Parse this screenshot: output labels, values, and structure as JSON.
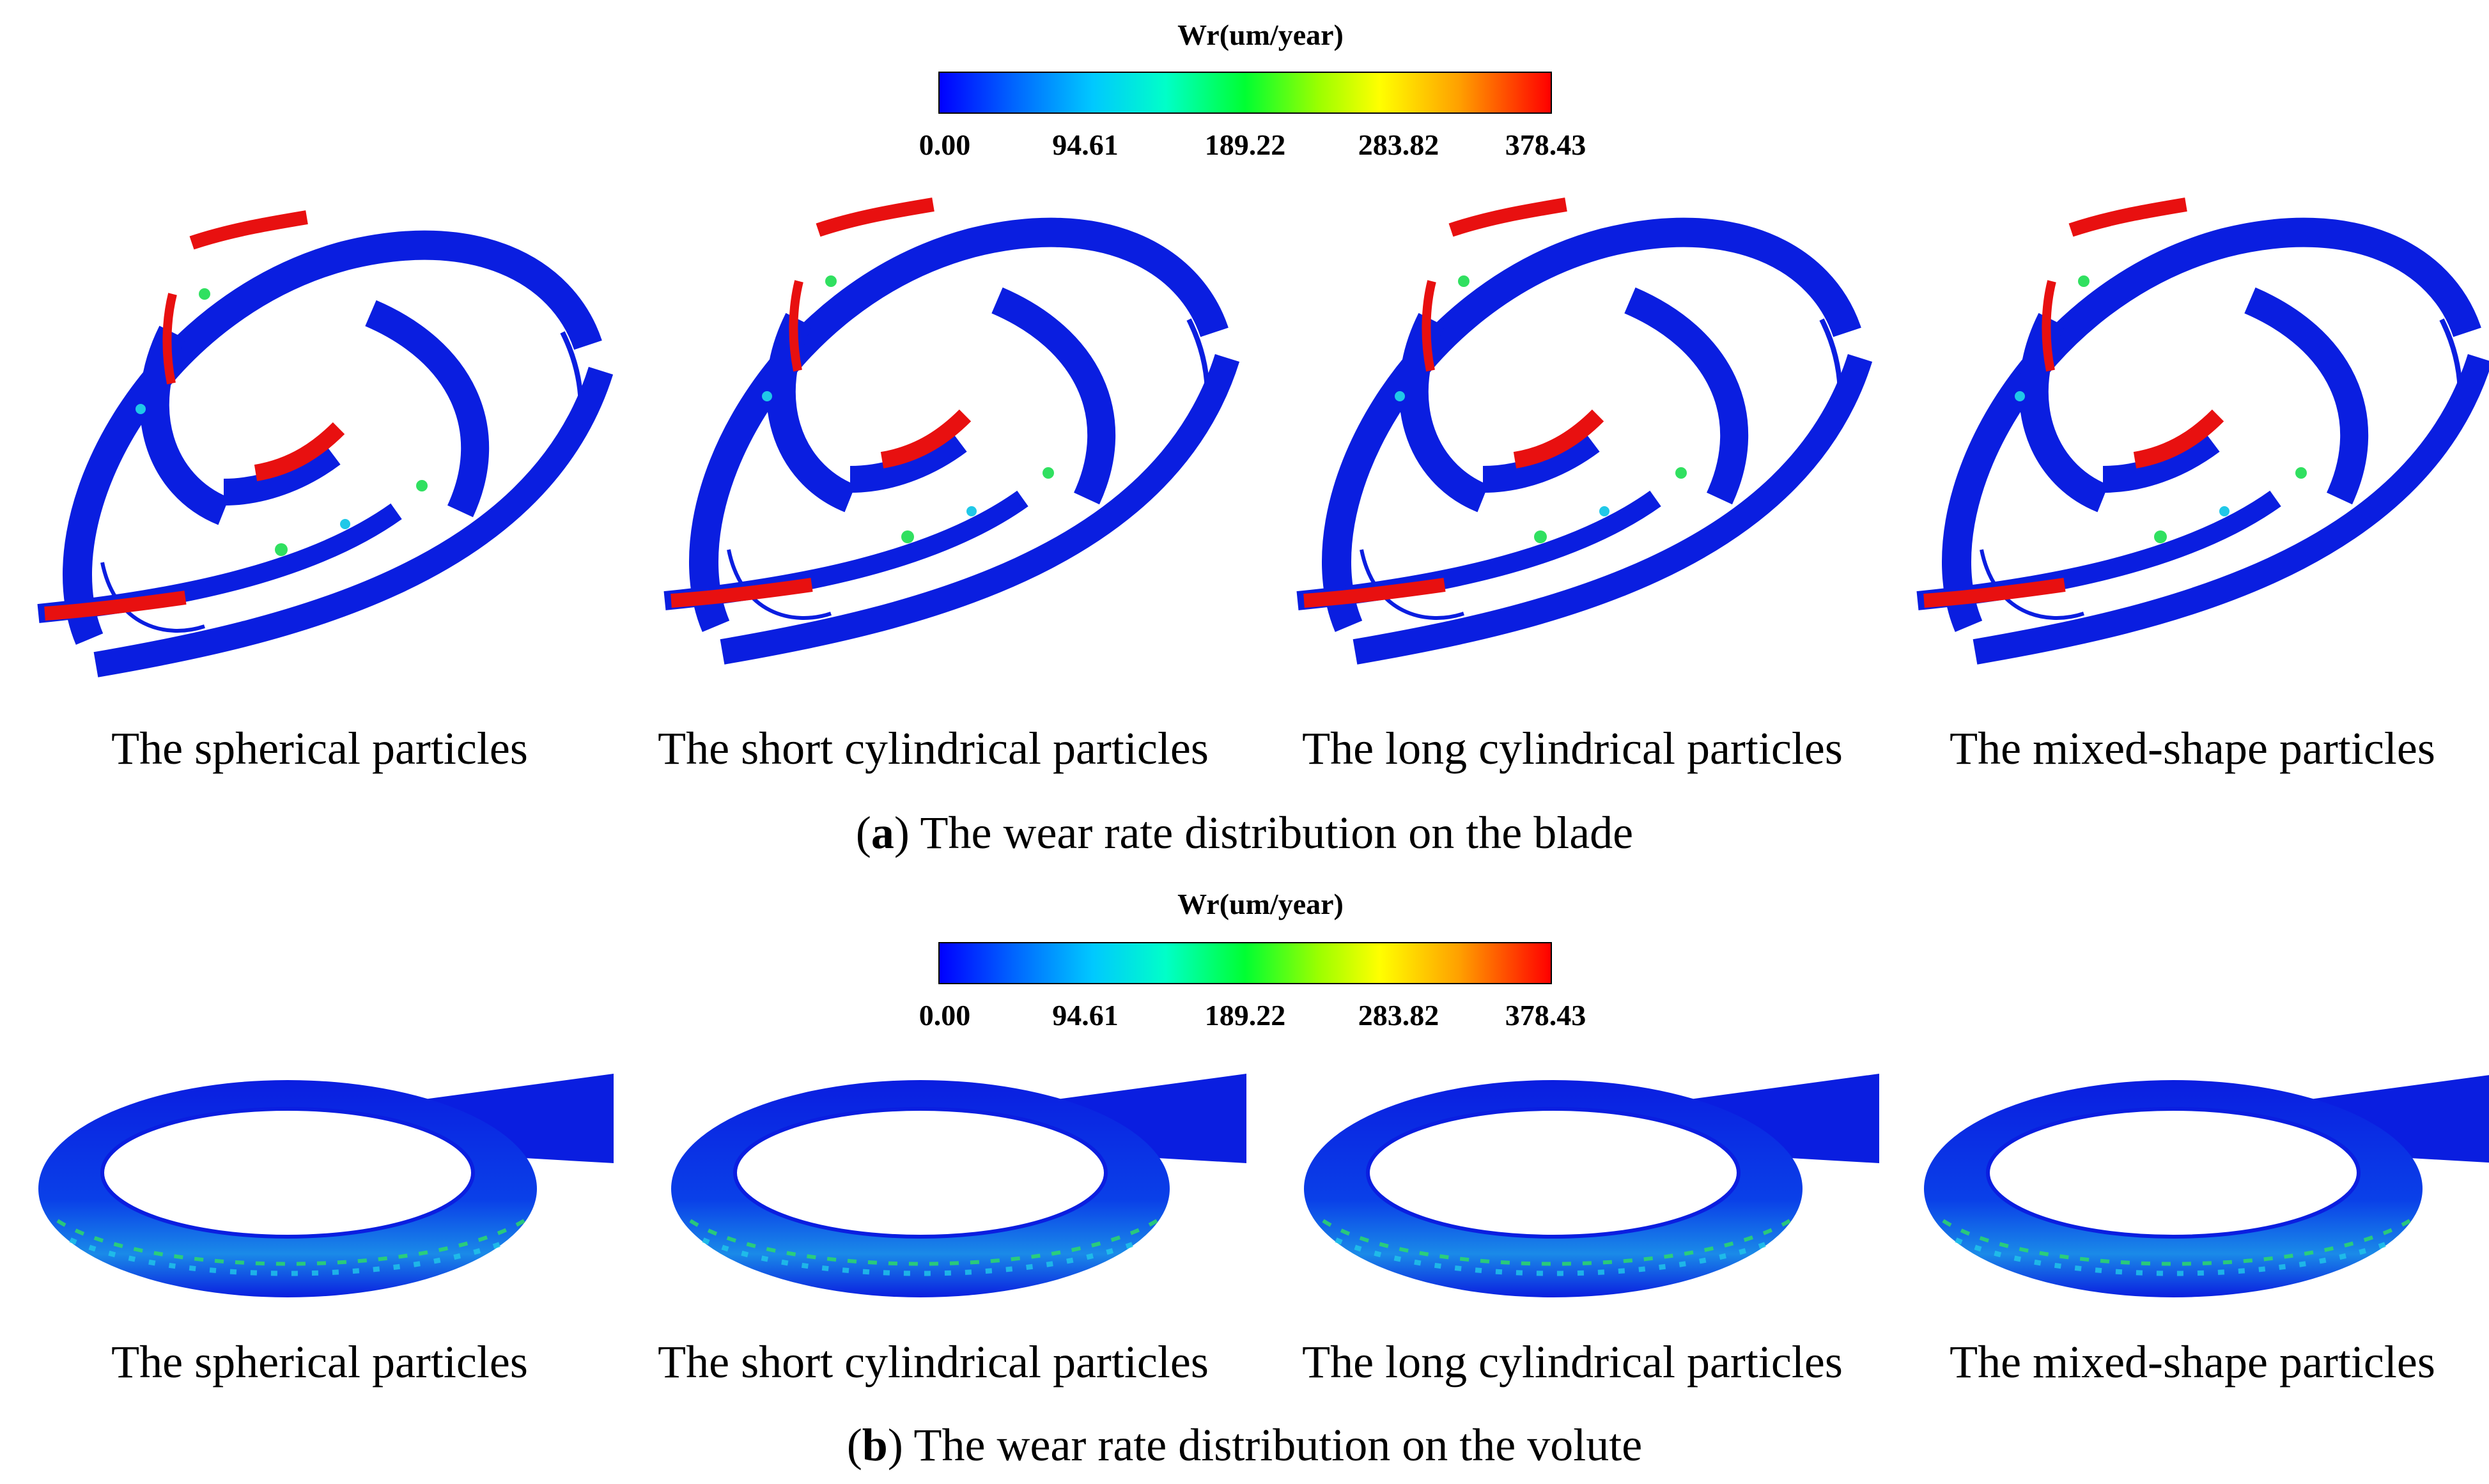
{
  "colorbar": {
    "title": "Wr(um/year)",
    "ticks": [
      "0.00",
      "94.61",
      "189.22",
      "283.82",
      "378.43"
    ],
    "colors": [
      "#0000ff",
      "#00c8ff",
      "#00ff32",
      "#ffff00",
      "#ff0000"
    ]
  },
  "panel_a": {
    "labels": [
      "The spherical particles",
      "The short cylindrical particles",
      "The long cylindrical particles",
      "The mixed-shape particles"
    ],
    "caption_letter": "a",
    "caption_text": ") The wear rate distribution on the blade",
    "caption_open": "("
  },
  "panel_b": {
    "labels": [
      "The spherical particles",
      "The short cylindrical particles",
      "The long cylindrical particles",
      "The mixed-shape particles"
    ],
    "caption_letter": "b",
    "caption_text": ") The wear rate distribution on the volute",
    "caption_open": "("
  },
  "colors": {
    "base_blue": "#0a1ee0",
    "wear_red": "#e81010",
    "wear_green": "#30e060",
    "wear_cyan": "#20c8e8"
  }
}
